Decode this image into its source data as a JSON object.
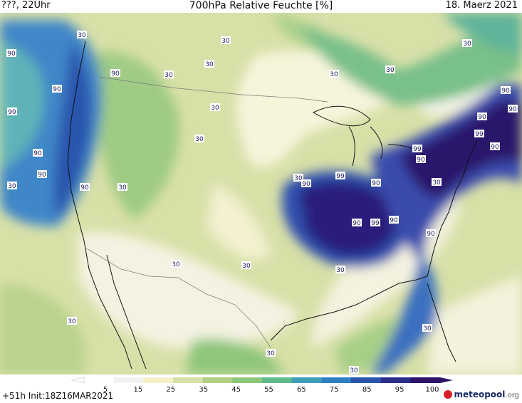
{
  "header": {
    "left": "???, 22Uhr",
    "center": "700hPa Relative Feuchte [%]",
    "right": "18. Maerz 2021"
  },
  "footer": {
    "run_info": "+51h Init:18Z16MAR2021"
  },
  "logo": {
    "name": "meteopool",
    "suffix": ".org"
  },
  "legend": {
    "ticks": [
      "5",
      "15",
      "25",
      "35",
      "45",
      "55",
      "65",
      "75",
      "85",
      "95",
      "100"
    ],
    "colors": [
      "#ffffff",
      "#f2f2f2",
      "#f3f0c6",
      "#d6e0a6",
      "#b3cf85",
      "#8cc77a",
      "#5fb98a",
      "#3ea0b8",
      "#2f7fc4",
      "#2a55ad",
      "#2a2d8a",
      "#2b146a"
    ]
  },
  "map_labels": [
    {
      "t": "30"
    },
    {
      "t": "90"
    },
    {
      "t": "90"
    },
    {
      "t": "90"
    },
    {
      "t": "90"
    },
    {
      "t": "90"
    },
    {
      "t": "30"
    },
    {
      "t": "90"
    },
    {
      "t": "90"
    },
    {
      "t": "30"
    },
    {
      "t": "30"
    },
    {
      "t": "30"
    },
    {
      "t": "30"
    },
    {
      "t": "30"
    },
    {
      "t": "30"
    },
    {
      "t": "30"
    },
    {
      "t": "30"
    },
    {
      "t": "30"
    },
    {
      "t": "30"
    },
    {
      "t": "30"
    },
    {
      "t": "30"
    },
    {
      "t": "30"
    },
    {
      "t": "30"
    },
    {
      "t": "30"
    },
    {
      "t": "30"
    },
    {
      "t": "99"
    },
    {
      "t": "90"
    },
    {
      "t": "90"
    },
    {
      "t": "99"
    },
    {
      "t": "90"
    },
    {
      "t": "90"
    },
    {
      "t": "99"
    },
    {
      "t": "90"
    },
    {
      "t": "90"
    },
    {
      "t": "99"
    },
    {
      "t": "90"
    },
    {
      "t": "90"
    },
    {
      "t": "90"
    },
    {
      "t": "90"
    },
    {
      "t": "30"
    },
    {
      "t": "30"
    }
  ]
}
